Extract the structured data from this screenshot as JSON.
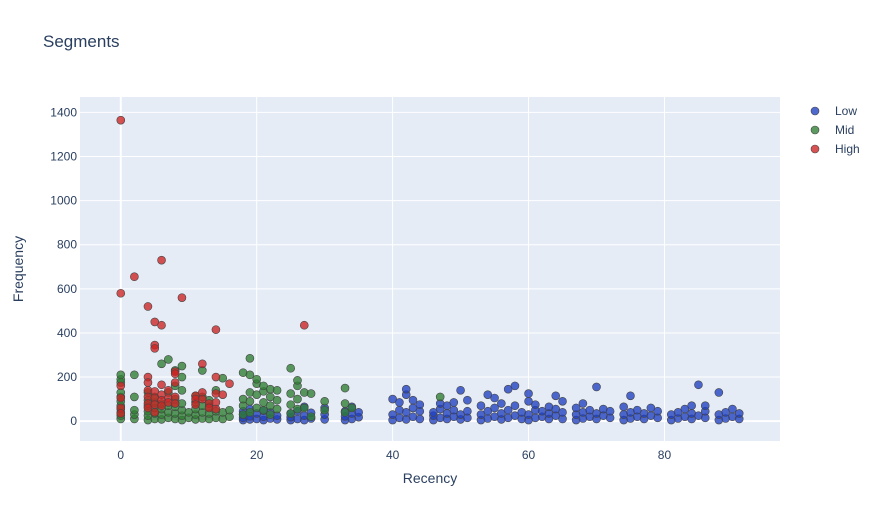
{
  "chart_data": {
    "type": "scatter",
    "title": "Segments",
    "xlabel": "Recency",
    "ylabel": "Frequency",
    "xlim": [
      -6,
      97
    ],
    "ylim": [
      -90,
      1470
    ],
    "xticks": [
      0,
      20,
      40,
      60,
      80
    ],
    "yticks": [
      0,
      200,
      400,
      600,
      800,
      1000,
      1200,
      1400
    ],
    "grid": true,
    "legend_position": "top-right",
    "series": [
      {
        "name": "Low",
        "color": "#1f3fbf",
        "points": [
          [
            18,
            5
          ],
          [
            18,
            15
          ],
          [
            18,
            30
          ],
          [
            18,
            45
          ],
          [
            19,
            8
          ],
          [
            19,
            22
          ],
          [
            19,
            55
          ],
          [
            20,
            10
          ],
          [
            20,
            35
          ],
          [
            21,
            5
          ],
          [
            21,
            20
          ],
          [
            21,
            48
          ],
          [
            22,
            12
          ],
          [
            22,
            40
          ],
          [
            23,
            8
          ],
          [
            23,
            25
          ],
          [
            25,
            5
          ],
          [
            25,
            18
          ],
          [
            25,
            35
          ],
          [
            26,
            10
          ],
          [
            26,
            45
          ],
          [
            27,
            5
          ],
          [
            27,
            25
          ],
          [
            27,
            65
          ],
          [
            28,
            12
          ],
          [
            28,
            38
          ],
          [
            30,
            8
          ],
          [
            30,
            30
          ],
          [
            30,
            60
          ],
          [
            33,
            5
          ],
          [
            33,
            22
          ],
          [
            33,
            45
          ],
          [
            34,
            10
          ],
          [
            34,
            35
          ],
          [
            34,
            65
          ],
          [
            35,
            18
          ],
          [
            35,
            40
          ],
          [
            40,
            5
          ],
          [
            40,
            30
          ],
          [
            40,
            100
          ],
          [
            41,
            15
          ],
          [
            41,
            50
          ],
          [
            41,
            85
          ],
          [
            42,
            8
          ],
          [
            42,
            40
          ],
          [
            42,
            120
          ],
          [
            42,
            145
          ],
          [
            43,
            20
          ],
          [
            43,
            60
          ],
          [
            43,
            95
          ],
          [
            44,
            10
          ],
          [
            44,
            45
          ],
          [
            44,
            75
          ],
          [
            46,
            5
          ],
          [
            46,
            25
          ],
          [
            46,
            40
          ],
          [
            47,
            15
          ],
          [
            47,
            55
          ],
          [
            47,
            80
          ],
          [
            48,
            10
          ],
          [
            48,
            35
          ],
          [
            48,
            70
          ],
          [
            49,
            20
          ],
          [
            49,
            50
          ],
          [
            49,
            85
          ],
          [
            50,
            8
          ],
          [
            50,
            30
          ],
          [
            50,
            140
          ],
          [
            51,
            15
          ],
          [
            51,
            45
          ],
          [
            51,
            95
          ],
          [
            53,
            5
          ],
          [
            53,
            30
          ],
          [
            53,
            70
          ],
          [
            54,
            12
          ],
          [
            54,
            45
          ],
          [
            54,
            120
          ],
          [
            55,
            20
          ],
          [
            55,
            60
          ],
          [
            55,
            105
          ],
          [
            56,
            8
          ],
          [
            56,
            35
          ],
          [
            56,
            80
          ],
          [
            57,
            15
          ],
          [
            57,
            50
          ],
          [
            57,
            145
          ],
          [
            58,
            25
          ],
          [
            58,
            70
          ],
          [
            58,
            160
          ],
          [
            59,
            10
          ],
          [
            59,
            40
          ],
          [
            60,
            5
          ],
          [
            60,
            30
          ],
          [
            60,
            90
          ],
          [
            60,
            125
          ],
          [
            61,
            15
          ],
          [
            61,
            50
          ],
          [
            61,
            75
          ],
          [
            62,
            20
          ],
          [
            62,
            45
          ],
          [
            63,
            10
          ],
          [
            63,
            35
          ],
          [
            63,
            65
          ],
          [
            64,
            25
          ],
          [
            64,
            55
          ],
          [
            64,
            115
          ],
          [
            65,
            10
          ],
          [
            65,
            40
          ],
          [
            65,
            90
          ],
          [
            67,
            5
          ],
          [
            67,
            30
          ],
          [
            67,
            60
          ],
          [
            68,
            12
          ],
          [
            68,
            40
          ],
          [
            68,
            80
          ],
          [
            69,
            20
          ],
          [
            69,
            50
          ],
          [
            70,
            10
          ],
          [
            70,
            35
          ],
          [
            70,
            155
          ],
          [
            71,
            25
          ],
          [
            71,
            55
          ],
          [
            72,
            15
          ],
          [
            72,
            45
          ],
          [
            74,
            5
          ],
          [
            74,
            30
          ],
          [
            74,
            65
          ],
          [
            75,
            12
          ],
          [
            75,
            40
          ],
          [
            75,
            115
          ],
          [
            76,
            20
          ],
          [
            76,
            50
          ],
          [
            77,
            10
          ],
          [
            77,
            35
          ],
          [
            78,
            25
          ],
          [
            78,
            60
          ],
          [
            79,
            15
          ],
          [
            79,
            45
          ],
          [
            81,
            5
          ],
          [
            81,
            30
          ],
          [
            82,
            12
          ],
          [
            82,
            40
          ],
          [
            83,
            20
          ],
          [
            83,
            55
          ],
          [
            84,
            10
          ],
          [
            84,
            35
          ],
          [
            84,
            70
          ],
          [
            85,
            25
          ],
          [
            85,
            165
          ],
          [
            86,
            15
          ],
          [
            86,
            45
          ],
          [
            86,
            70
          ],
          [
            88,
            5
          ],
          [
            88,
            30
          ],
          [
            88,
            130
          ],
          [
            89,
            12
          ],
          [
            89,
            40
          ],
          [
            90,
            20
          ],
          [
            90,
            55
          ],
          [
            91,
            10
          ],
          [
            91,
            35
          ]
        ]
      },
      {
        "name": "Mid",
        "color": "#2e7d32",
        "points": [
          [
            0,
            10
          ],
          [
            0,
            25
          ],
          [
            0,
            40
          ],
          [
            0,
            55
          ],
          [
            0,
            70
          ],
          [
            0,
            90
          ],
          [
            0,
            110
          ],
          [
            0,
            130
          ],
          [
            0,
            175
          ],
          [
            0,
            190
          ],
          [
            0,
            210
          ],
          [
            2,
            10
          ],
          [
            2,
            30
          ],
          [
            2,
            50
          ],
          [
            2,
            110
          ],
          [
            2,
            210
          ],
          [
            4,
            5
          ],
          [
            4,
            25
          ],
          [
            4,
            45
          ],
          [
            4,
            70
          ],
          [
            4,
            95
          ],
          [
            4,
            130
          ],
          [
            5,
            10
          ],
          [
            5,
            35
          ],
          [
            5,
            60
          ],
          [
            5,
            85
          ],
          [
            5,
            110
          ],
          [
            6,
            8
          ],
          [
            6,
            30
          ],
          [
            6,
            55
          ],
          [
            6,
            80
          ],
          [
            6,
            260
          ],
          [
            7,
            15
          ],
          [
            7,
            40
          ],
          [
            7,
            70
          ],
          [
            7,
            130
          ],
          [
            7,
            280
          ],
          [
            8,
            10
          ],
          [
            8,
            35
          ],
          [
            8,
            65
          ],
          [
            8,
            100
          ],
          [
            8,
            160
          ],
          [
            8,
            230
          ],
          [
            9,
            5
          ],
          [
            9,
            25
          ],
          [
            9,
            50
          ],
          [
            9,
            80
          ],
          [
            9,
            140
          ],
          [
            9,
            200
          ],
          [
            9,
            250
          ],
          [
            10,
            15
          ],
          [
            10,
            40
          ],
          [
            11,
            8
          ],
          [
            11,
            30
          ],
          [
            11,
            55
          ],
          [
            11,
            85
          ],
          [
            11,
            115
          ],
          [
            12,
            12
          ],
          [
            12,
            40
          ],
          [
            12,
            70
          ],
          [
            12,
            110
          ],
          [
            12,
            230
          ],
          [
            13,
            10
          ],
          [
            13,
            35
          ],
          [
            13,
            65
          ],
          [
            13,
            95
          ],
          [
            14,
            15
          ],
          [
            14,
            45
          ],
          [
            14,
            140
          ],
          [
            15,
            10
          ],
          [
            15,
            40
          ],
          [
            15,
            195
          ],
          [
            16,
            20
          ],
          [
            16,
            50
          ],
          [
            18,
            30
          ],
          [
            18,
            70
          ],
          [
            18,
            100
          ],
          [
            18,
            220
          ],
          [
            19,
            40
          ],
          [
            19,
            90
          ],
          [
            19,
            130
          ],
          [
            19,
            210
          ],
          [
            19,
            285
          ],
          [
            20,
            60
          ],
          [
            20,
            120
          ],
          [
            20,
            170
          ],
          [
            20,
            190
          ],
          [
            21,
            50
          ],
          [
            21,
            85
          ],
          [
            21,
            135
          ],
          [
            21,
            160
          ],
          [
            22,
            30
          ],
          [
            22,
            70
          ],
          [
            22,
            110
          ],
          [
            22,
            145
          ],
          [
            23,
            55
          ],
          [
            23,
            95
          ],
          [
            23,
            140
          ],
          [
            25,
            35
          ],
          [
            25,
            75
          ],
          [
            25,
            125
          ],
          [
            25,
            240
          ],
          [
            26,
            55
          ],
          [
            26,
            100
          ],
          [
            26,
            160
          ],
          [
            26,
            185
          ],
          [
            27,
            60
          ],
          [
            27,
            130
          ],
          [
            28,
            20
          ],
          [
            28,
            125
          ],
          [
            30,
            50
          ],
          [
            30,
            90
          ],
          [
            33,
            40
          ],
          [
            33,
            80
          ],
          [
            33,
            150
          ],
          [
            34,
            60
          ],
          [
            47,
            110
          ]
        ]
      },
      {
        "name": "High",
        "color": "#cc2222",
        "points": [
          [
            0,
            1365
          ],
          [
            0,
            580
          ],
          [
            0,
            160
          ],
          [
            0,
            105
          ],
          [
            0,
            60
          ],
          [
            0,
            35
          ],
          [
            2,
            655
          ],
          [
            4,
            520
          ],
          [
            4,
            200
          ],
          [
            4,
            175
          ],
          [
            4,
            140
          ],
          [
            4,
            110
          ],
          [
            4,
            80
          ],
          [
            4,
            60
          ],
          [
            5,
            450
          ],
          [
            5,
            345
          ],
          [
            5,
            330
          ],
          [
            5,
            135
          ],
          [
            5,
            105
          ],
          [
            5,
            75
          ],
          [
            5,
            40
          ],
          [
            6,
            730
          ],
          [
            6,
            435
          ],
          [
            6,
            165
          ],
          [
            6,
            120
          ],
          [
            6,
            95
          ],
          [
            6,
            70
          ],
          [
            7,
            140
          ],
          [
            7,
            105
          ],
          [
            7,
            85
          ],
          [
            8,
            225
          ],
          [
            8,
            215
          ],
          [
            8,
            175
          ],
          [
            8,
            110
          ],
          [
            8,
            80
          ],
          [
            9,
            560
          ],
          [
            11,
            115
          ],
          [
            11,
            100
          ],
          [
            11,
            75
          ],
          [
            12,
            260
          ],
          [
            12,
            130
          ],
          [
            12,
            100
          ],
          [
            13,
            80
          ],
          [
            13,
            60
          ],
          [
            14,
            415
          ],
          [
            14,
            200
          ],
          [
            14,
            125
          ],
          [
            14,
            85
          ],
          [
            14,
            55
          ],
          [
            15,
            120
          ],
          [
            16,
            170
          ],
          [
            27,
            435
          ]
        ]
      }
    ]
  }
}
